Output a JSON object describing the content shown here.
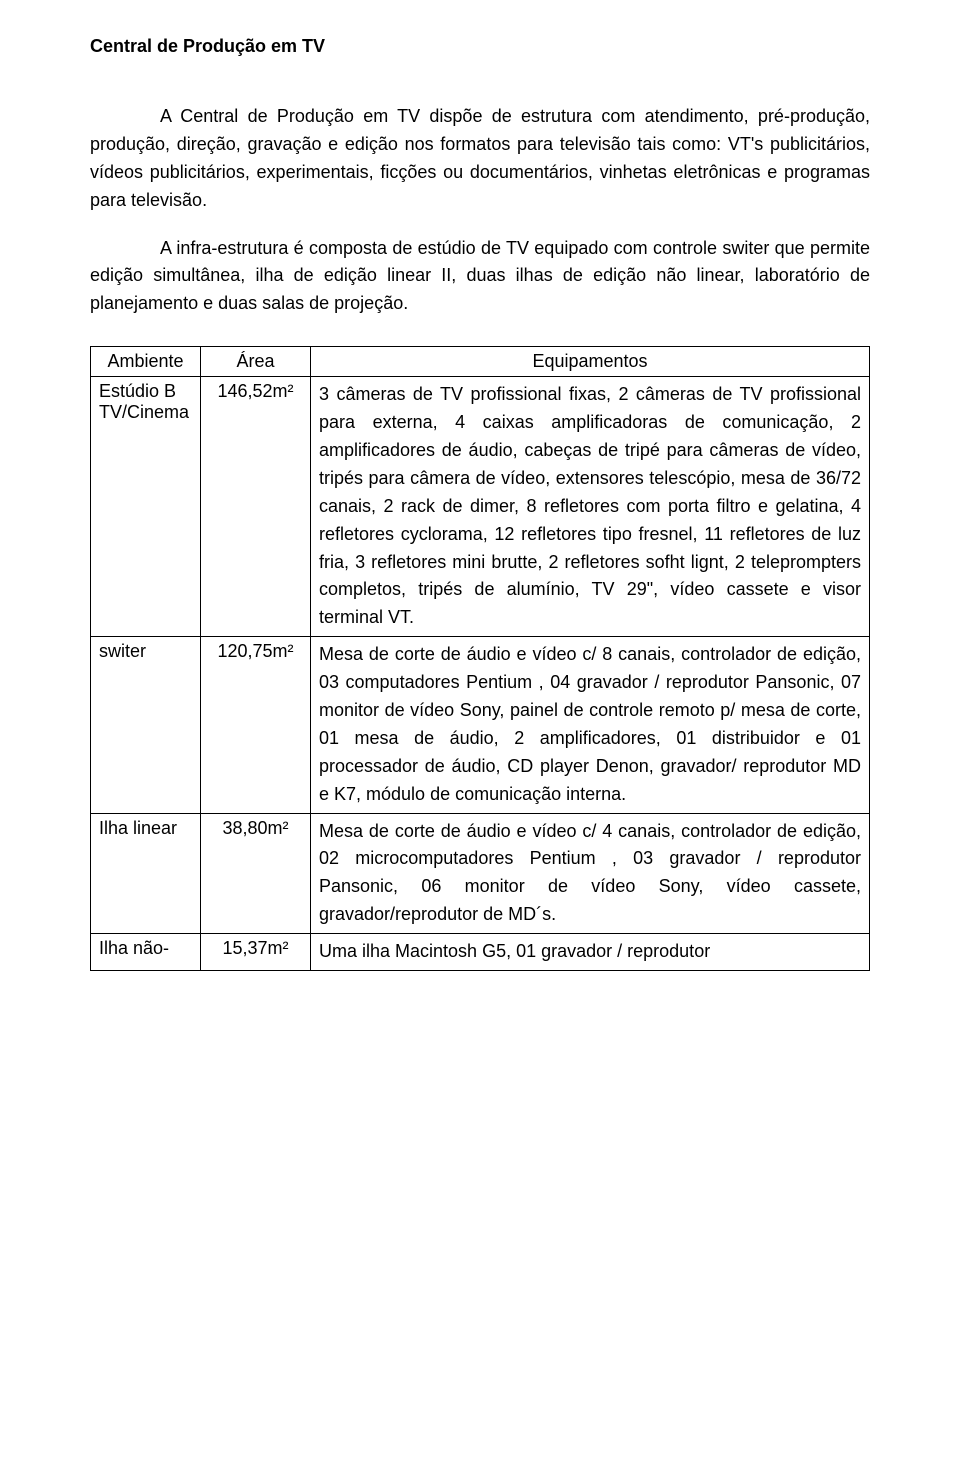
{
  "title": "Central de Produção em TV",
  "para1": "A Central de Produção em TV dispõe de estrutura com atendimento, pré-produção, produção, direção, gravação e edição nos formatos para televisão tais como: VT's publicitários, vídeos publicitários, experimentais, ficções ou documentários, vinhetas eletrônicas e programas para televisão.",
  "para2": "A infra-estrutura é composta de estúdio de TV equipado com controle switer que permite edição simultânea, ilha de edição linear II, duas ilhas de edição não linear, laboratório de planejamento e duas salas de projeção.",
  "table": {
    "headers": {
      "col1": "Ambiente",
      "col2": "Área",
      "col3": "Equipamentos"
    },
    "rows": [
      {
        "ambiente": "Estúdio B TV/Cinema",
        "area": "146,52m²",
        "equip": "3 câmeras de TV profissional fixas, 2 câmeras de TV profissional para externa, 4 caixas amplificadoras de comunicação, 2 amplificadores de áudio, cabeças de tripé para câmeras de vídeo, tripés para câmera de vídeo, extensores telescópio, mesa de 36/72 canais, 2 rack de dimer, 8 refletores com porta filtro e gelatina, 4 refletores cyclorama, 12 refletores tipo fresnel, 11 refletores de luz fria, 3 refletores mini brutte, 2 refletores sofht lignt, 2 teleprompters completos, tripés de alumínio, TV 29\", vídeo cassete e visor terminal VT."
      },
      {
        "ambiente": "switer",
        "area": "120,75m²",
        "equip": "Mesa de corte de áudio e vídeo c/ 8 canais, controlador de edição, 03 computadores Pentium , 04 gravador / reprodutor Pansonic, 07 monitor de vídeo Sony, painel de controle remoto p/ mesa de corte, 01 mesa de áudio, 2 amplificadores, 01 distribuidor e 01 processador de áudio, CD player Denon, gravador/ reprodutor MD e K7, módulo de comunicação interna."
      },
      {
        "ambiente": "Ilha linear",
        "area": "38,80m²",
        "equip": "Mesa de corte de áudio e vídeo c/ 4 canais, controlador de edição, 02 microcomputadores Pentium , 03 gravador / reprodutor Pansonic, 06 monitor de vídeo Sony, vídeo cassete, gravador/reprodutor de MD´s."
      },
      {
        "ambiente": "Ilha não-",
        "area": "15,37m²",
        "equip": "Uma ilha Macintosh G5, 01 gravador / reprodutor"
      }
    ]
  },
  "colors": {
    "text": "#000000",
    "background": "#ffffff",
    "border": "#000000"
  }
}
